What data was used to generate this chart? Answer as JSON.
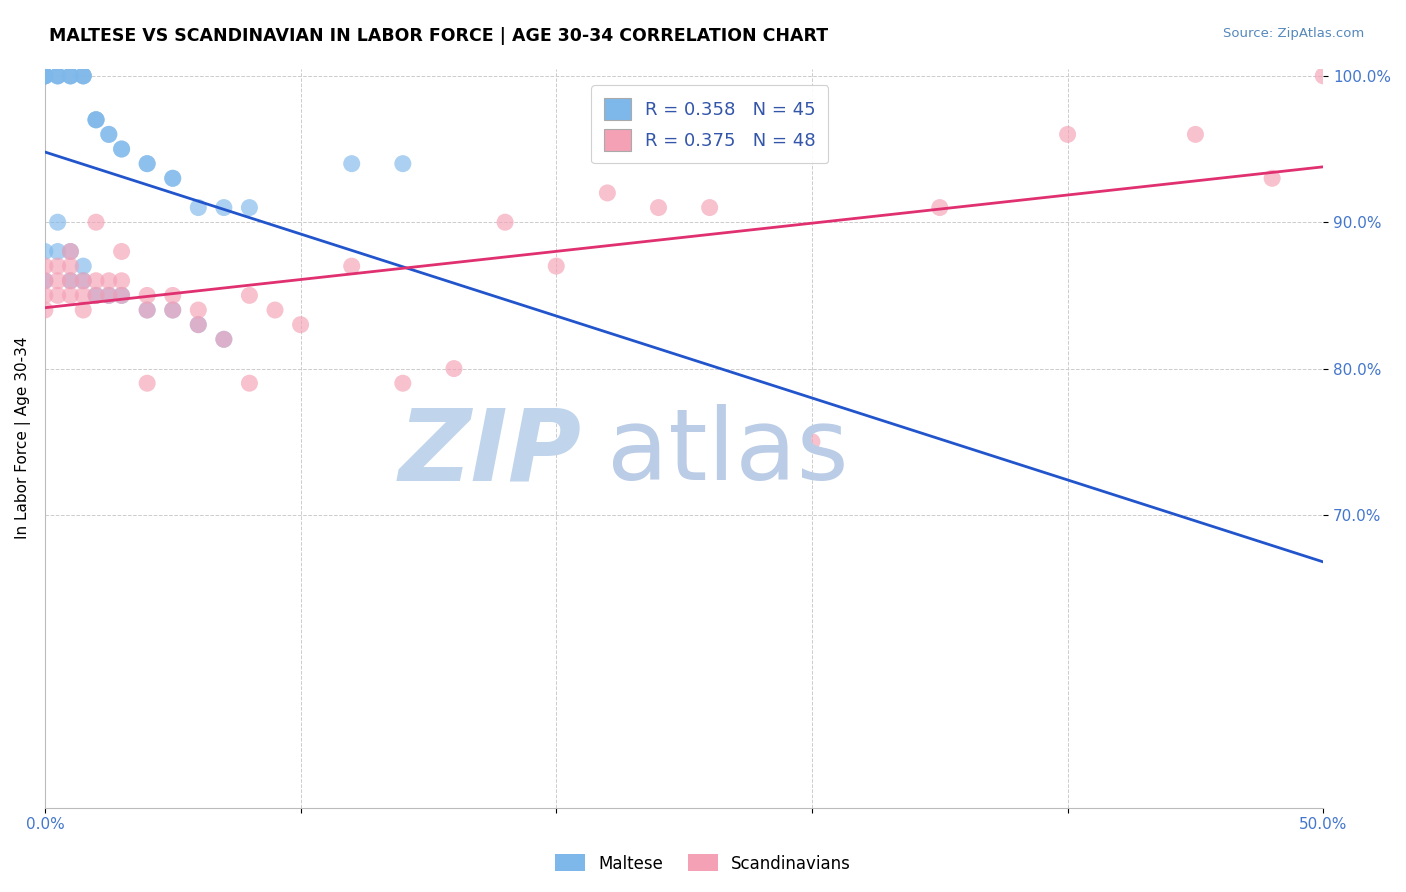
{
  "title": "MALTESE VS SCANDINAVIAN IN LABOR FORCE | AGE 30-34 CORRELATION CHART",
  "source_text": "Source: ZipAtlas.com",
  "ylabel": "In Labor Force | Age 30-34",
  "xlim": [
    0.0,
    0.5
  ],
  "ylim": [
    0.5,
    1.005
  ],
  "ytick_positions": [
    0.7,
    0.8,
    0.9,
    1.0
  ],
  "xtick_positions": [
    0.0,
    0.1,
    0.2,
    0.3,
    0.4,
    0.5
  ],
  "xtick_labels": [
    "0.0%",
    "",
    "",
    "",
    "",
    "50.0%"
  ],
  "maltese_color": "#7EB8EA",
  "scandinavian_color": "#F4A0B5",
  "maltese_line_color": "#2255CC",
  "scandinavian_line_color": "#E03070",
  "background_color": "#FFFFFF",
  "grid_color": "#CCCCCC",
  "watermark_color_zip": "#C5D8EE",
  "watermark_color_atlas": "#BED0E8",
  "R_maltese": 0.358,
  "N_maltese": 45,
  "R_scandinavian": 0.375,
  "N_scandinavian": 48,
  "legend_maltese": "Maltese",
  "legend_scandinavian": "Scandinavians",
  "maltese_x": [
    0.0,
    0.0,
    0.0,
    0.0,
    0.0,
    0.005,
    0.005,
    0.005,
    0.01,
    0.01,
    0.01,
    0.015,
    0.015,
    0.015,
    0.02,
    0.02,
    0.02,
    0.025,
    0.025,
    0.03,
    0.03,
    0.04,
    0.04,
    0.05,
    0.05,
    0.06,
    0.07,
    0.08,
    0.12,
    0.14,
    0.0,
    0.0,
    0.005,
    0.005,
    0.01,
    0.01,
    0.015,
    0.015,
    0.02,
    0.025,
    0.03,
    0.04,
    0.05,
    0.06,
    0.07
  ],
  "maltese_y": [
    1.0,
    1.0,
    1.0,
    1.0,
    1.0,
    1.0,
    1.0,
    1.0,
    1.0,
    1.0,
    1.0,
    1.0,
    1.0,
    1.0,
    0.97,
    0.97,
    0.97,
    0.96,
    0.96,
    0.95,
    0.95,
    0.94,
    0.94,
    0.93,
    0.93,
    0.91,
    0.91,
    0.91,
    0.94,
    0.94,
    0.88,
    0.86,
    0.9,
    0.88,
    0.88,
    0.86,
    0.87,
    0.86,
    0.85,
    0.85,
    0.85,
    0.84,
    0.84,
    0.83,
    0.82
  ],
  "scandinavian_x": [
    0.0,
    0.0,
    0.0,
    0.005,
    0.005,
    0.005,
    0.01,
    0.01,
    0.01,
    0.015,
    0.015,
    0.015,
    0.02,
    0.02,
    0.025,
    0.025,
    0.03,
    0.03,
    0.04,
    0.04,
    0.05,
    0.05,
    0.06,
    0.06,
    0.07,
    0.08,
    0.09,
    0.1,
    0.12,
    0.14,
    0.16,
    0.18,
    0.2,
    0.22,
    0.24,
    0.26,
    0.3,
    0.35,
    0.4,
    0.45,
    0.48,
    0.0,
    0.01,
    0.02,
    0.03,
    0.04,
    0.08,
    0.5
  ],
  "scandinavian_y": [
    0.87,
    0.86,
    0.85,
    0.87,
    0.86,
    0.85,
    0.87,
    0.86,
    0.85,
    0.86,
    0.85,
    0.84,
    0.86,
    0.85,
    0.86,
    0.85,
    0.86,
    0.85,
    0.85,
    0.84,
    0.85,
    0.84,
    0.84,
    0.83,
    0.82,
    0.85,
    0.84,
    0.83,
    0.87,
    0.79,
    0.8,
    0.9,
    0.87,
    0.92,
    0.91,
    0.91,
    0.75,
    0.91,
    0.96,
    0.96,
    0.93,
    0.84,
    0.88,
    0.9,
    0.88,
    0.79,
    0.79,
    1.0
  ]
}
